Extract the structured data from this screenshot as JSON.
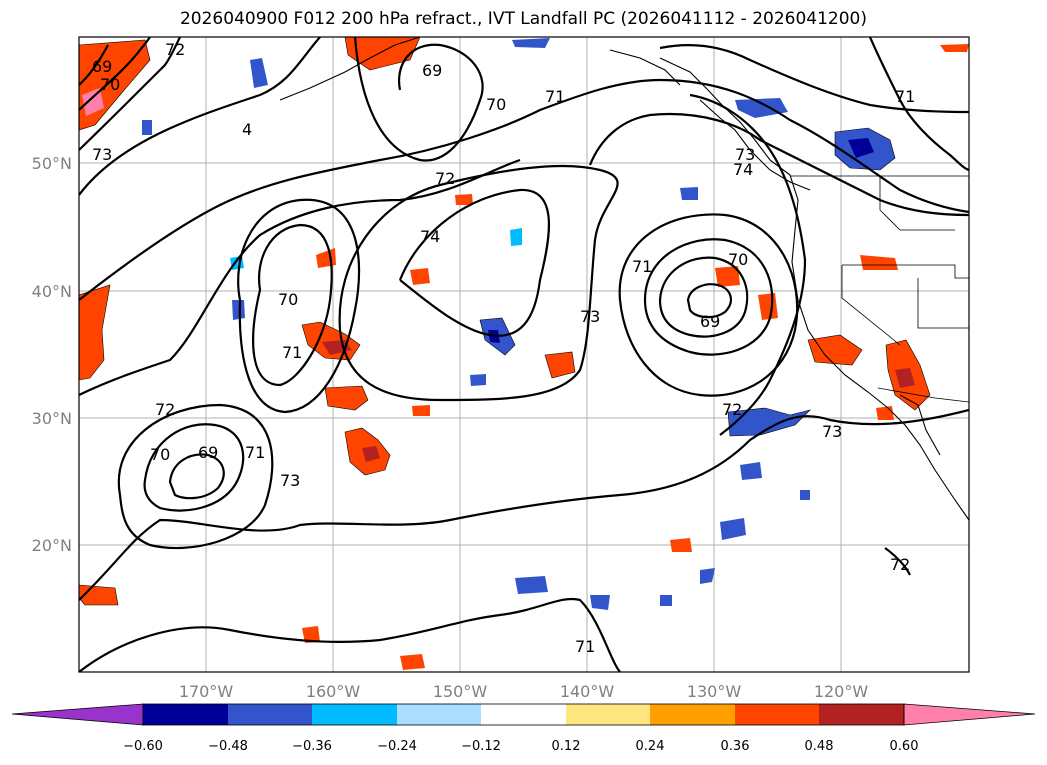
{
  "title": "2026040900 F012 200 hPa refract., IVT Landfall PC (2026041112 - 2026041200)",
  "lat_ticks": [
    "50°N",
    "40°N",
    "30°N",
    "20°N"
  ],
  "lon_ticks": [
    "170°W",
    "160°W",
    "150°W",
    "140°W",
    "130°W",
    "120°W"
  ],
  "colorbar": {
    "ticks": [
      "−0.60",
      "−0.48",
      "−0.36",
      "−0.24",
      "−0.12",
      "0.12",
      "0.24",
      "0.36",
      "0.48",
      "0.60"
    ],
    "colors": [
      "#9933cc",
      "#000099",
      "#3355cc",
      "#00bbff",
      "#aaddff",
      "#ffffff",
      "#ffe680",
      "#ffa000",
      "#ff4400",
      "#b22222",
      "#ff80a8"
    ]
  },
  "contour_labels": [
    "69",
    "70",
    "72",
    "73",
    "4",
    "69",
    "70",
    "71",
    "71",
    "73",
    "74",
    "72",
    "74",
    "70",
    "71",
    "72",
    "71",
    "70",
    "73",
    "69",
    "72",
    "73",
    "70",
    "69",
    "71",
    "73",
    "71",
    "72"
  ]
}
